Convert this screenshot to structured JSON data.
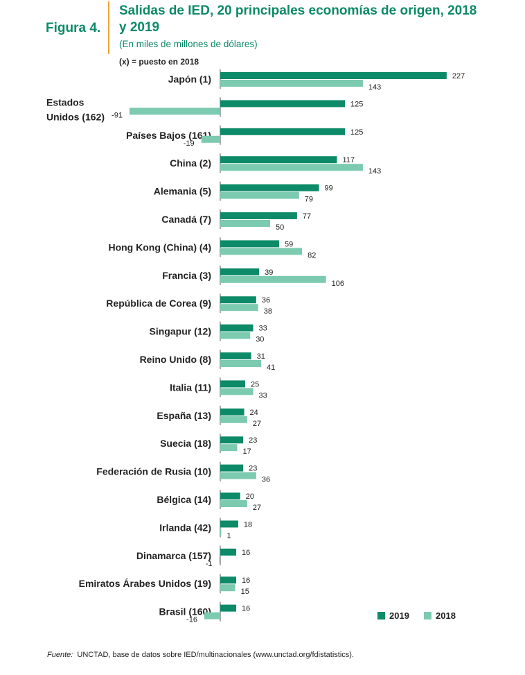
{
  "figure": {
    "label": "Figura 4.",
    "title": "Salidas de IED, 20 principales economías de origen, 2018 y 2019",
    "subtitle": "(En miles de millones de dólares)",
    "note": "(x) = puesto en 2018"
  },
  "colors": {
    "y2019": "#0d8a68",
    "y2018": "#7ccab0",
    "accent_line": "#f0a33c"
  },
  "legend": {
    "y2019": "2019",
    "y2018": "2018"
  },
  "source": {
    "label": "Fuente:",
    "text": "UNCTAD, base de datos sobre IED/multinacionales (www.unctad.org/fdistatistics)."
  },
  "chart_data": {
    "type": "bar",
    "orientation": "horizontal",
    "categories": [
      "Japón (1)",
      "Estados Unidos (162)",
      "Países Bajos (161)",
      "China (2)",
      "Alemania (5)",
      "Canadá (7)",
      "Hong Kong (China) (4)",
      "Francia (3)",
      "República de Corea (9)",
      "Singapur (12)",
      "Reino Unido (8)",
      "Italia (11)",
      "España (13)",
      "Suecia (18)",
      "Federación de Rusia (10)",
      "Bélgica (14)",
      "Irlanda (42)",
      "Dinamarca (157)",
      "Emiratos Árabes Unidos (19)",
      "Brasil (160)"
    ],
    "series": [
      {
        "name": "2019",
        "values": [
          227,
          125,
          125,
          117,
          99,
          77,
          59,
          39,
          36,
          33,
          31,
          25,
          24,
          23,
          23,
          20,
          18,
          16,
          16,
          16
        ]
      },
      {
        "name": "2018",
        "values": [
          143,
          -91,
          -19,
          143,
          79,
          50,
          82,
          106,
          38,
          30,
          41,
          33,
          27,
          17,
          36,
          27,
          1,
          -1,
          15,
          -16
        ]
      }
    ],
    "grid": false,
    "legend_position": "bottom-right"
  }
}
